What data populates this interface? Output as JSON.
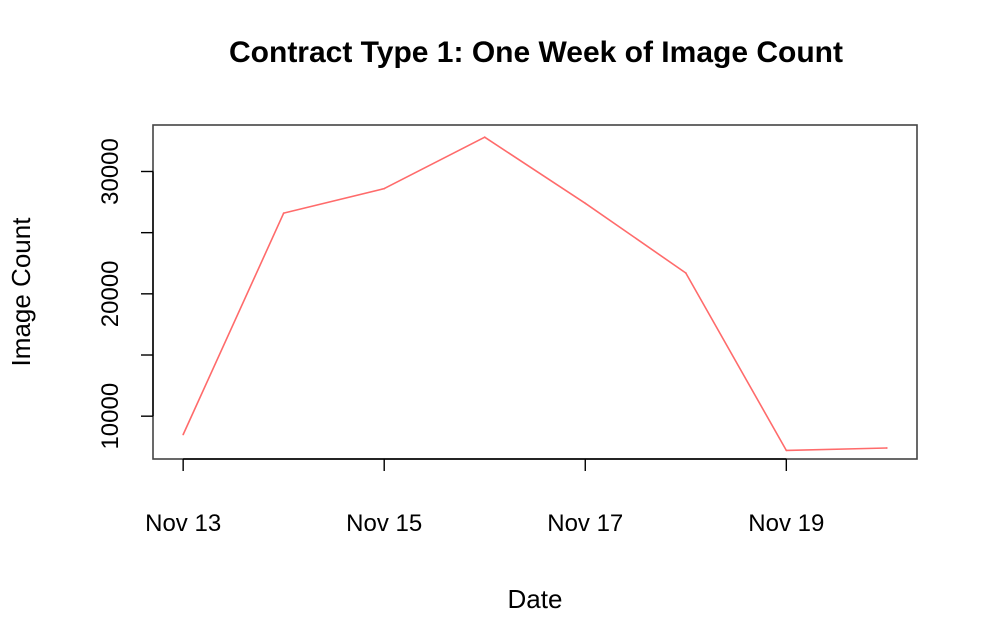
{
  "chart_data": {
    "type": "line",
    "title": "Contract Type 1: One Week of Image Count",
    "xlabel": "Date",
    "ylabel": "Image Count",
    "x": [
      "2020-11-13",
      "2020-11-14",
      "2020-11-15",
      "2020-11-16",
      "2020-11-17",
      "2020-11-18",
      "2020-11-19",
      "2020-11-20"
    ],
    "x_tick_labels": [
      "Nov 13",
      "Nov 15",
      "Nov 17",
      "Nov 19"
    ],
    "x_tick_values": [
      "2020-11-13",
      "2020-11-15",
      "2020-11-17",
      "2020-11-19"
    ],
    "y_ticks": [
      10000,
      15000,
      20000,
      25000,
      30000
    ],
    "y_tick_labels": [
      "10000",
      "",
      "20000",
      "",
      "30000"
    ],
    "xlim": [
      "2020-11-12.7",
      "2020-11-20.3"
    ],
    "ylim": [
      6500,
      33800
    ],
    "grid": false,
    "legend": "none",
    "series": [
      {
        "color": "#ff6b6b",
        "values": [
          8500,
          26600,
          28600,
          32800,
          27400,
          21700,
          7200,
          7400
        ]
      }
    ]
  }
}
